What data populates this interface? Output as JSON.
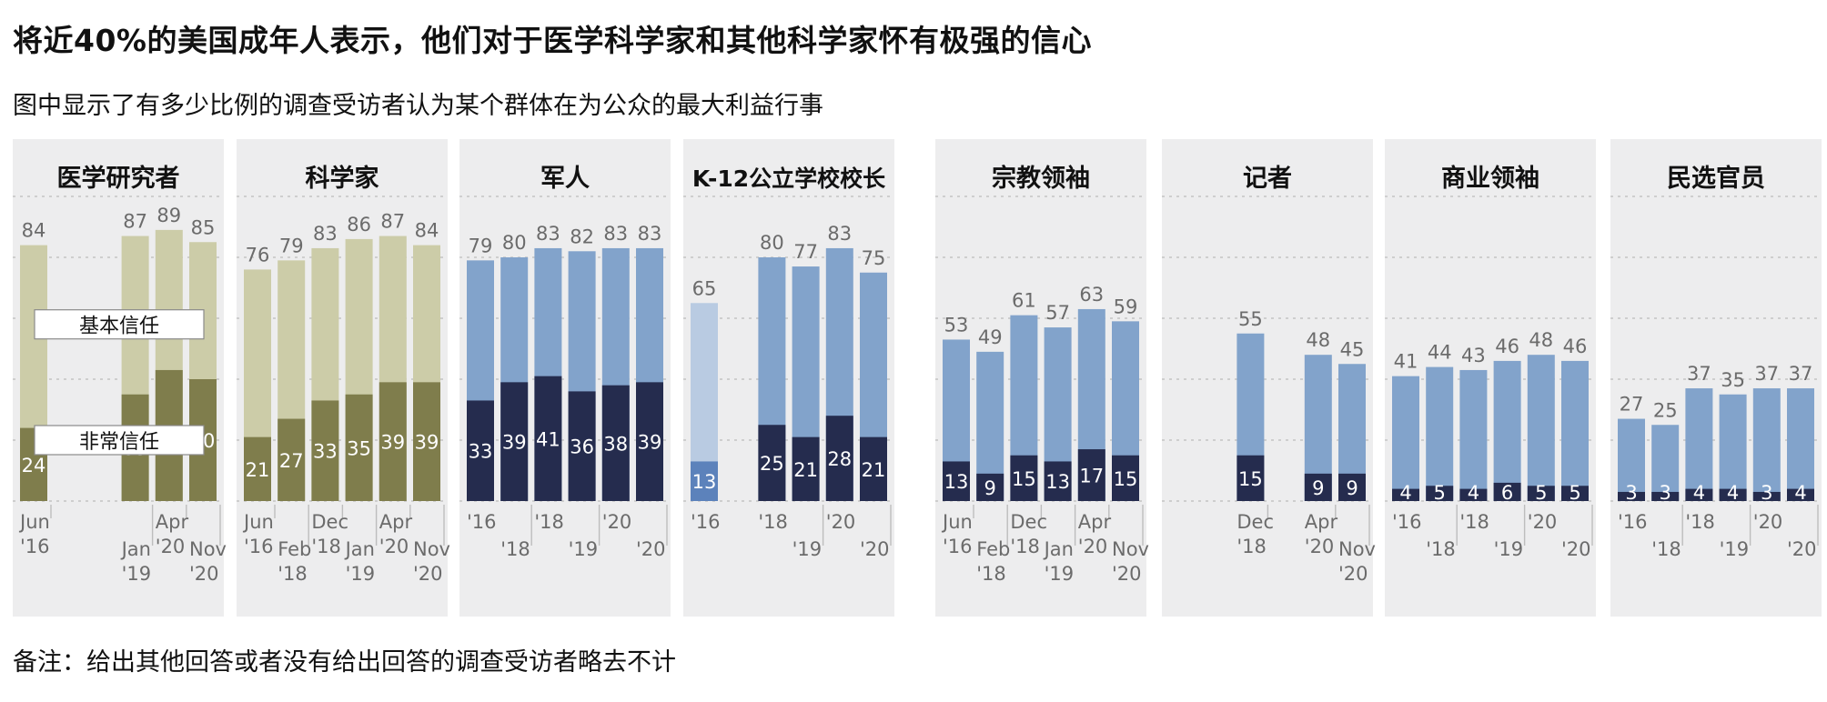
{
  "title": "将近40%的美国成年人表示，他们对于医学科学家和其他科学家怀有极强的信心",
  "subtitle": "图中显示了有多少比例的调查受访者认为某个群体在为公众的最大利益行事",
  "note": "备注：给出其他回答或者没有给出回答的调查受访者略去不计",
  "colors": {
    "panel_bg": "#ededee",
    "olive_light": "#cccca8",
    "olive_dark": "#7f7d4c",
    "blue_light": "#82a3cb",
    "blue_dark": "#252c4e",
    "blue_pale": "#b9cbe2",
    "blue_mid": "#5c82bb",
    "label_gray": "#6b6b6b"
  },
  "chart_data": [
    {
      "type": "bar",
      "title": "医学研究者",
      "palette": "olive",
      "ylim": [
        0,
        100
      ],
      "legend": [
        "基本信任",
        "非常信任"
      ],
      "slots": [
        0,
        3,
        4,
        5
      ],
      "totals": [
        84,
        87,
        89,
        85
      ],
      "strong": [
        24,
        35,
        43,
        40
      ],
      "x_labels": [
        {
          "text": [
            "Jun",
            "'16"
          ],
          "slot": 0,
          "row": 0
        },
        {
          "text": [
            "Jan",
            "'19"
          ],
          "slot": 3,
          "row": 1
        },
        {
          "text": [
            "Apr",
            "'20"
          ],
          "slot": 4,
          "row": 0
        },
        {
          "text": [
            "Nov",
            "'20"
          ],
          "slot": 5,
          "row": 1
        }
      ]
    },
    {
      "type": "bar",
      "title": "科学家",
      "palette": "olive",
      "ylim": [
        0,
        100
      ],
      "slots": [
        0,
        1,
        2,
        3,
        4,
        5
      ],
      "totals": [
        76,
        79,
        83,
        86,
        87,
        84
      ],
      "strong": [
        21,
        27,
        33,
        35,
        39,
        39
      ],
      "x_labels": [
        {
          "text": [
            "Jun",
            "'16"
          ],
          "slot": 0,
          "row": 0
        },
        {
          "text": [
            "Feb",
            "'18"
          ],
          "slot": 1,
          "row": 1
        },
        {
          "text": [
            "Dec",
            "'18"
          ],
          "slot": 2,
          "row": 0
        },
        {
          "text": [
            "Jan",
            "'19"
          ],
          "slot": 3,
          "row": 1
        },
        {
          "text": [
            "Apr",
            "'20"
          ],
          "slot": 4,
          "row": 0
        },
        {
          "text": [
            "Nov",
            "'20"
          ],
          "slot": 5,
          "row": 1
        }
      ]
    },
    {
      "type": "bar",
      "title": "军人",
      "palette": "blue",
      "ylim": [
        0,
        100
      ],
      "slots": [
        0,
        1,
        2,
        3,
        4,
        5
      ],
      "totals": [
        79,
        80,
        83,
        82,
        83,
        83
      ],
      "strong": [
        33,
        39,
        41,
        36,
        38,
        39
      ],
      "x_labels": [
        {
          "text": [
            "'16"
          ],
          "slot": 0,
          "row": 0
        },
        {
          "text": [
            "'18"
          ],
          "slot": 1,
          "row": 1
        },
        {
          "text": [
            "'18"
          ],
          "slot": 2,
          "row": 0
        },
        {
          "text": [
            "'19"
          ],
          "slot": 3,
          "row": 1
        },
        {
          "text": [
            "'20"
          ],
          "slot": 4,
          "row": 0
        },
        {
          "text": [
            "'20"
          ],
          "slot": 5,
          "row": 1
        }
      ]
    },
    {
      "type": "bar",
      "title": "K-12公立学校校长",
      "palette": "blue",
      "ylim": [
        0,
        100
      ],
      "slots": [
        0,
        2,
        3,
        4,
        5
      ],
      "totals": [
        65,
        80,
        77,
        83,
        75
      ],
      "strong": [
        13,
        25,
        21,
        28,
        21
      ],
      "first_bar_pale": true,
      "x_labels": [
        {
          "text": [
            "'16"
          ],
          "slot": 0,
          "row": 0
        },
        {
          "text": [
            "'18"
          ],
          "slot": 2,
          "row": 0
        },
        {
          "text": [
            "'19"
          ],
          "slot": 3,
          "row": 1
        },
        {
          "text": [
            "'20"
          ],
          "slot": 4,
          "row": 0
        },
        {
          "text": [
            "'20"
          ],
          "slot": 5,
          "row": 1
        }
      ]
    },
    {
      "type": "bar",
      "title": "宗教领袖",
      "palette": "blue",
      "ylim": [
        0,
        100
      ],
      "slots": [
        0,
        1,
        2,
        3,
        4,
        5
      ],
      "totals": [
        53,
        49,
        61,
        57,
        63,
        59
      ],
      "strong": [
        13,
        9,
        15,
        13,
        17,
        15
      ],
      "x_labels": [
        {
          "text": [
            "Jun",
            "'16"
          ],
          "slot": 0,
          "row": 0
        },
        {
          "text": [
            "Feb",
            "'18"
          ],
          "slot": 1,
          "row": 1
        },
        {
          "text": [
            "Dec",
            "'18"
          ],
          "slot": 2,
          "row": 0
        },
        {
          "text": [
            "Jan",
            "'19"
          ],
          "slot": 3,
          "row": 1
        },
        {
          "text": [
            "Apr",
            "'20"
          ],
          "slot": 4,
          "row": 0
        },
        {
          "text": [
            "Nov",
            "'20"
          ],
          "slot": 5,
          "row": 1
        }
      ]
    },
    {
      "type": "bar",
      "title": "记者",
      "palette": "blue",
      "ylim": [
        0,
        100
      ],
      "slots": [
        2,
        4,
        5
      ],
      "totals": [
        55,
        48,
        45
      ],
      "strong": [
        15,
        9,
        9
      ],
      "x_labels": [
        {
          "text": [
            "Dec",
            "'18"
          ],
          "slot": 2,
          "row": 0
        },
        {
          "text": [
            "Apr",
            "'20"
          ],
          "slot": 4,
          "row": 0
        },
        {
          "text": [
            "Nov",
            "'20"
          ],
          "slot": 5,
          "row": 1
        }
      ]
    },
    {
      "type": "bar",
      "title": "商业领袖",
      "palette": "blue",
      "ylim": [
        0,
        100
      ],
      "slots": [
        0,
        1,
        2,
        3,
        4,
        5
      ],
      "totals": [
        41,
        44,
        43,
        46,
        48,
        46
      ],
      "strong": [
        4,
        5,
        4,
        6,
        5,
        5
      ],
      "x_labels": [
        {
          "text": [
            "'16"
          ],
          "slot": 0,
          "row": 0
        },
        {
          "text": [
            "'18"
          ],
          "slot": 1,
          "row": 1
        },
        {
          "text": [
            "'18"
          ],
          "slot": 2,
          "row": 0
        },
        {
          "text": [
            "'19"
          ],
          "slot": 3,
          "row": 1
        },
        {
          "text": [
            "'20"
          ],
          "slot": 4,
          "row": 0
        },
        {
          "text": [
            "'20"
          ],
          "slot": 5,
          "row": 1
        }
      ]
    },
    {
      "type": "bar",
      "title": "民选官员",
      "palette": "blue",
      "ylim": [
        0,
        100
      ],
      "slots": [
        0,
        1,
        2,
        3,
        4,
        5
      ],
      "totals": [
        27,
        25,
        37,
        35,
        37,
        37
      ],
      "strong": [
        3,
        3,
        4,
        4,
        3,
        4
      ],
      "x_labels": [
        {
          "text": [
            "'16"
          ],
          "slot": 0,
          "row": 0
        },
        {
          "text": [
            "'18"
          ],
          "slot": 1,
          "row": 1
        },
        {
          "text": [
            "'18"
          ],
          "slot": 2,
          "row": 0
        },
        {
          "text": [
            "'19"
          ],
          "slot": 3,
          "row": 1
        },
        {
          "text": [
            "'20"
          ],
          "slot": 4,
          "row": 0
        },
        {
          "text": [
            "'20"
          ],
          "slot": 5,
          "row": 1
        }
      ]
    }
  ]
}
